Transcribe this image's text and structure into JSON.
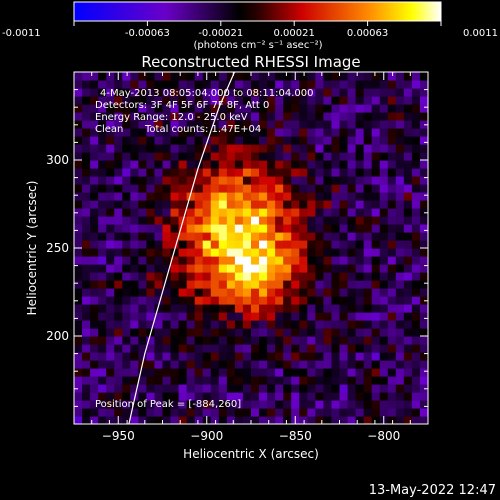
{
  "chart_data": {
    "type": "heatmap",
    "title": "Reconstructed RHESSI Image",
    "xlabel": "Heliocentric X (arcsec)",
    "ylabel": "Heliocentric Y (arcsec)",
    "xlim": [
      -975,
      -775
    ],
    "ylim": [
      150,
      350
    ],
    "x_ticks": [
      -950,
      -900,
      -850,
      -800
    ],
    "y_ticks": [
      200,
      250,
      300
    ],
    "colorbar": {
      "range": [
        -0.0011,
        0.0011
      ],
      "ticks": [
        "-0.0011",
        "-0.00063",
        "-0.00021",
        "0.00021",
        "0.00063",
        "0.0011"
      ],
      "units": "(photons cm⁻² s⁻¹ asec⁻²)"
    },
    "annotations": {
      "time_range": "4-May-2013 08:05:04.000 to 08:11:04.000",
      "detectors": "Detectors: 3F 4F 5F 6F 7F 8F, Att 0",
      "energy_range": "Energy Range: 12.0 - 25.0 keV",
      "clean": "Clean",
      "total_counts": "Total counts: 1.47E+04",
      "peak": "Position of Peak = [-884,260]"
    },
    "peak": {
      "x": -884,
      "y": 260
    },
    "limb_curve": [
      [
        -944,
        150
      ],
      [
        -935,
        190
      ],
      [
        -925,
        225
      ],
      [
        -915,
        260
      ],
      [
        -905,
        295
      ],
      [
        -893,
        330
      ],
      [
        -880,
        360
      ]
    ]
  },
  "footer": {
    "timestamp": "13-May-2022 12:47"
  }
}
